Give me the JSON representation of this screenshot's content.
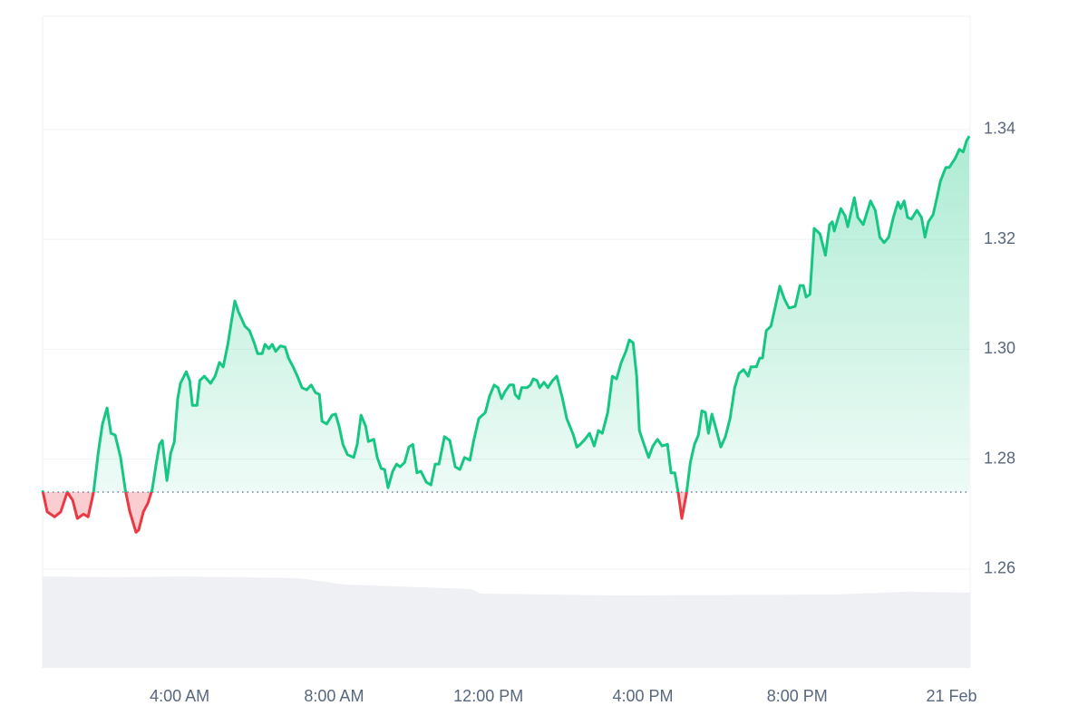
{
  "chart_data": {
    "type": "line",
    "x": [
      0.45,
      0.57,
      0.76,
      0.92,
      1.09,
      1.23,
      1.35,
      1.51,
      1.63,
      1.77,
      1.89,
      2.0,
      2.12,
      2.22,
      2.33,
      2.47,
      2.59,
      2.71,
      2.87,
      2.94,
      3.06,
      3.18,
      3.29,
      3.39,
      3.48,
      3.55,
      3.67,
      3.77,
      3.86,
      3.95,
      4.02,
      4.17,
      4.26,
      4.33,
      4.45,
      4.52,
      4.64,
      4.8,
      4.92,
      5.03,
      5.13,
      5.25,
      5.34,
      5.43,
      5.53,
      5.69,
      5.81,
      5.93,
      6.02,
      6.14,
      6.21,
      6.31,
      6.4,
      6.49,
      6.61,
      6.73,
      6.82,
      6.94,
      7.05,
      7.17,
      7.29,
      7.41,
      7.52,
      7.62,
      7.69,
      7.81,
      7.95,
      8.04,
      8.13,
      8.23,
      8.35,
      8.51,
      8.6,
      8.7,
      8.82,
      8.89,
      9.03,
      9.12,
      9.22,
      9.31,
      9.4,
      9.52,
      9.62,
      9.71,
      9.83,
      9.94,
      10.04,
      10.15,
      10.25,
      10.39,
      10.51,
      10.62,
      10.72,
      10.86,
      11.0,
      11.14,
      11.26,
      11.38,
      11.52,
      11.61,
      11.75,
      11.92,
      12.03,
      12.15,
      12.25,
      12.34,
      12.43,
      12.55,
      12.65,
      12.69,
      12.79,
      12.86,
      13.0,
      13.09,
      13.16,
      13.26,
      13.33,
      13.44,
      13.54,
      13.66,
      13.77,
      13.91,
      14.03,
      14.2,
      14.29,
      14.38,
      14.5,
      14.62,
      14.74,
      14.85,
      14.95,
      15.09,
      15.21,
      15.32,
      15.44,
      15.56,
      15.65,
      15.75,
      15.84,
      15.91,
      16.03,
      16.15,
      16.26,
      16.38,
      16.5,
      16.64,
      16.73,
      16.83,
      16.92,
      17.01,
      17.13,
      17.23,
      17.34,
      17.44,
      17.53,
      17.62,
      17.7,
      17.79,
      17.91,
      18.02,
      18.14,
      18.26,
      18.38,
      18.49,
      18.61,
      18.73,
      18.8,
      18.94,
      19.03,
      19.1,
      19.2,
      19.32,
      19.46,
      19.55,
      19.67,
      19.79,
      19.95,
      20.07,
      20.16,
      20.23,
      20.33,
      20.44,
      20.59,
      20.73,
      20.84,
      20.91,
      20.96,
      21.13,
      21.24,
      21.31,
      21.48,
      21.57,
      21.71,
      21.9,
      22.02,
      22.14,
      22.25,
      22.37,
      22.49,
      22.61,
      22.68,
      22.77,
      22.86,
      22.96,
      23.1,
      23.22,
      23.31,
      23.4,
      23.52,
      23.62,
      23.71,
      23.85,
      23.94,
      24.09,
      24.2,
      24.3,
      24.39,
      24.46
    ],
    "values": [
      1.2743,
      1.2704,
      1.2695,
      1.2704,
      1.274,
      1.2725,
      1.2692,
      1.27,
      1.2695,
      1.274,
      1.2811,
      1.2864,
      1.2893,
      1.2847,
      1.2844,
      1.2803,
      1.2745,
      1.2704,
      1.2667,
      1.2671,
      1.2704,
      1.272,
      1.2745,
      1.2791,
      1.2827,
      1.2834,
      1.2761,
      1.2811,
      1.2831,
      1.291,
      1.2938,
      1.2959,
      1.2943,
      1.2898,
      1.2898,
      1.2943,
      1.2951,
      1.2938,
      1.2951,
      1.2976,
      1.2968,
      1.3009,
      1.305,
      1.3088,
      1.3067,
      1.3042,
      1.3034,
      1.3012,
      1.2992,
      1.2992,
      1.3009,
      1.3001,
      1.3009,
      1.2996,
      1.3006,
      1.3004,
      1.2984,
      1.2968,
      1.2951,
      1.293,
      1.2926,
      1.2935,
      1.2921,
      1.2918,
      1.2869,
      1.2864,
      1.288,
      1.2882,
      1.286,
      1.2827,
      1.2808,
      1.2803,
      1.2827,
      1.288,
      1.286,
      1.2832,
      1.2836,
      1.2803,
      1.2783,
      1.2781,
      1.2748,
      1.2778,
      1.2791,
      1.2786,
      1.2794,
      1.2822,
      1.2827,
      1.2775,
      1.2778,
      1.2758,
      1.2753,
      1.2791,
      1.2791,
      1.2841,
      1.2834,
      1.2786,
      1.2781,
      1.2803,
      1.2798,
      1.2831,
      1.2874,
      1.2885,
      1.2915,
      1.2935,
      1.293,
      1.291,
      1.2923,
      1.2935,
      1.2935,
      1.2918,
      1.291,
      1.293,
      1.293,
      1.2935,
      1.2946,
      1.2943,
      1.293,
      1.294,
      1.293,
      1.2943,
      1.2951,
      1.2913,
      1.2874,
      1.2844,
      1.2822,
      1.2827,
      1.2836,
      1.2847,
      1.2824,
      1.2852,
      1.2847,
      1.2885,
      1.2951,
      1.2946,
      1.2976,
      1.2996,
      1.3017,
      1.3012,
      1.2951,
      1.2852,
      1.2827,
      1.2803,
      1.2824,
      1.2836,
      1.2824,
      1.2827,
      1.2775,
      1.2775,
      1.2737,
      1.2692,
      1.2737,
      1.2794,
      1.2827,
      1.2844,
      1.2888,
      1.2885,
      1.2847,
      1.2882,
      1.2852,
      1.2822,
      1.2841,
      1.2874,
      1.293,
      1.2956,
      1.2963,
      1.2951,
      1.2968,
      1.2968,
      1.2984,
      1.2984,
      1.3034,
      1.3042,
      1.3086,
      1.3115,
      1.3091,
      1.3075,
      1.3078,
      1.3116,
      1.3116,
      1.3095,
      1.31,
      1.322,
      1.321,
      1.3171,
      1.3227,
      1.3232,
      1.3215,
      1.3256,
      1.3243,
      1.3223,
      1.3276,
      1.324,
      1.3227,
      1.327,
      1.3253,
      1.3204,
      1.3194,
      1.3204,
      1.324,
      1.3268,
      1.3256,
      1.327,
      1.324,
      1.3237,
      1.3253,
      1.324,
      1.3204,
      1.3232,
      1.3245,
      1.3276,
      1.3306,
      1.3331,
      1.3331,
      1.3347,
      1.3364,
      1.3359,
      1.338,
      1.3388
    ],
    "baseline": 1.274,
    "color_up": "#16c784",
    "color_down": "#ea3943",
    "xlim": [
      0.45,
      24.48
    ],
    "xticks": [
      {
        "value": 4,
        "label": "4:00 AM"
      },
      {
        "value": 8,
        "label": "8:00 AM"
      },
      {
        "value": 12,
        "label": "12:00 PM"
      },
      {
        "value": 16,
        "label": "4:00 PM"
      },
      {
        "value": 20,
        "label": "8:00 PM"
      },
      {
        "value": 24,
        "label": "21 Feb"
      }
    ],
    "ylim": [
      1.242,
      1.3606
    ],
    "yticks": [
      1.26,
      1.28,
      {
        "value": 1.3,
        "label": "1.30"
      },
      1.32,
      1.34
    ],
    "grid": true
  }
}
